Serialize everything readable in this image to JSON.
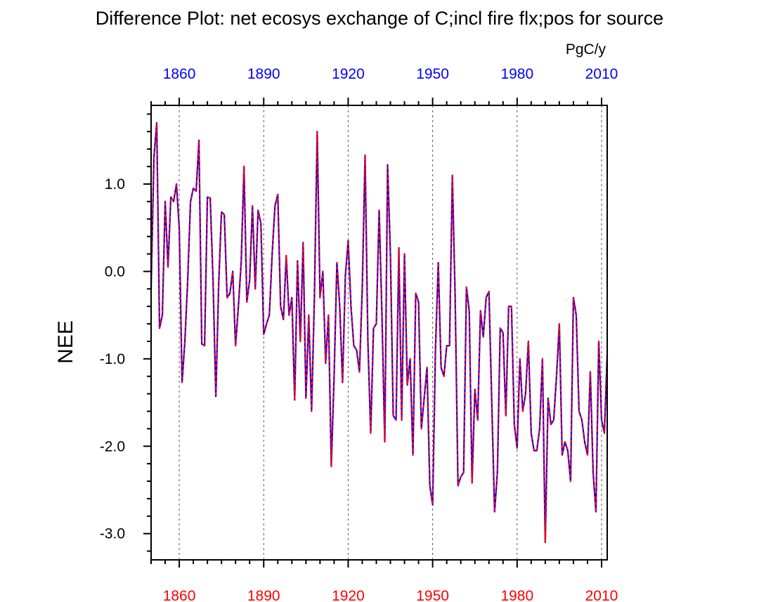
{
  "chart_data": {
    "type": "line",
    "title": "Difference Plot: net ecosys exchange of C;incl fire flx;pos for source",
    "units": "PgC/y",
    "ylabel": "NEE",
    "xlabel": "",
    "xlim": [
      1850,
      2012
    ],
    "ylim": [
      -3.3,
      1.9
    ],
    "x_ticks": [
      1860,
      1890,
      1920,
      1950,
      1980,
      2010
    ],
    "x_tick_labels": [
      "1860",
      "1890",
      "1920",
      "1950",
      "1980",
      "2010"
    ],
    "y_ticks": [
      1.0,
      0.0,
      -1.0,
      -2.0,
      -3.0
    ],
    "y_tick_labels": [
      "1.0",
      "0.0",
      "-1.0",
      "-2.0",
      "-3.0"
    ],
    "grid": "vertical dashed at major x ticks",
    "colors": {
      "series_blue": "#0000ff",
      "series_red": "#ff0000",
      "top_axis_labels": "#0000ff",
      "bottom_axis_labels": "#ff0000"
    },
    "x": [
      1850,
      1851,
      1852,
      1853,
      1854,
      1855,
      1856,
      1857,
      1858,
      1859,
      1860,
      1861,
      1862,
      1863,
      1864,
      1865,
      1866,
      1867,
      1868,
      1869,
      1870,
      1871,
      1872,
      1873,
      1874,
      1875,
      1876,
      1877,
      1878,
      1879,
      1880,
      1881,
      1882,
      1883,
      1884,
      1885,
      1886,
      1887,
      1888,
      1889,
      1890,
      1891,
      1892,
      1893,
      1894,
      1895,
      1896,
      1897,
      1898,
      1899,
      1900,
      1901,
      1902,
      1903,
      1904,
      1905,
      1906,
      1907,
      1908,
      1909,
      1910,
      1911,
      1912,
      1913,
      1914,
      1915,
      1916,
      1917,
      1918,
      1919,
      1920,
      1921,
      1922,
      1923,
      1924,
      1925,
      1926,
      1927,
      1928,
      1929,
      1930,
      1931,
      1932,
      1933,
      1934,
      1935,
      1936,
      1937,
      1938,
      1939,
      1940,
      1941,
      1942,
      1943,
      1944,
      1945,
      1946,
      1947,
      1948,
      1949,
      1950,
      1951,
      1952,
      1953,
      1954,
      1955,
      1956,
      1957,
      1958,
      1959,
      1960,
      1961,
      1962,
      1963,
      1964,
      1965,
      1966,
      1967,
      1968,
      1969,
      1970,
      1971,
      1972,
      1973,
      1974,
      1975,
      1976,
      1977,
      1978,
      1979,
      1980,
      1981,
      1982,
      1983,
      1984,
      1985,
      1986,
      1987,
      1988,
      1989,
      1990,
      1991,
      1992,
      1993,
      1994,
      1995,
      1996,
      1997,
      1998,
      1999,
      2000,
      2001,
      2002,
      2003,
      2004,
      2005,
      2006,
      2007,
      2008,
      2009,
      2010,
      2011,
      2012
    ],
    "series": [
      {
        "values": [
          -0.2,
          1.3,
          1.7,
          -0.65,
          -0.5,
          0.8,
          0.05,
          0.85,
          0.8,
          1.0,
          0.5,
          -1.27,
          -0.8,
          -0.1,
          0.8,
          0.95,
          0.92,
          1.5,
          -0.83,
          -0.85,
          0.85,
          0.84,
          -0.1,
          -1.43,
          -0.15,
          0.68,
          0.65,
          -0.3,
          -0.25,
          0.0,
          -0.85,
          -0.4,
          0.1,
          1.2,
          -0.35,
          -0.1,
          0.75,
          -0.2,
          0.7,
          0.55,
          -0.72,
          -0.6,
          -0.5,
          0.2,
          0.75,
          0.88,
          -0.4,
          -0.55,
          0.18,
          -0.5,
          -0.3,
          -1.47,
          0.12,
          -0.8,
          0.33,
          -1.45,
          -0.5,
          -1.6,
          -0.3,
          1.6,
          -0.3,
          0.0,
          -1.05,
          -0.5,
          -2.23,
          -1.2,
          0.1,
          -0.4,
          -1.27,
          -0.05,
          0.35,
          -0.4,
          -0.85,
          -0.9,
          -1.15,
          -0.2,
          1.33,
          -0.8,
          -1.85,
          -0.65,
          -0.6,
          0.7,
          -0.5,
          -1.95,
          1.22,
          0.2,
          -1.65,
          -1.7,
          0.27,
          -1.7,
          0.2,
          -1.3,
          -1.0,
          -2.1,
          -0.25,
          -0.35,
          -1.8,
          -1.45,
          -1.1,
          -2.45,
          -2.67,
          -0.9,
          0.1,
          -1.1,
          -1.2,
          -0.85,
          -0.85,
          1.1,
          -0.3,
          -2.45,
          -2.35,
          -2.3,
          -0.18,
          -0.45,
          -2.42,
          -1.35,
          -1.7,
          -0.45,
          -0.75,
          -0.3,
          -0.23,
          -1.5,
          -2.75,
          -2.3,
          -0.65,
          -0.7,
          -1.65,
          -0.4,
          -0.4,
          -1.75,
          -2.02,
          -1.0,
          -1.6,
          -1.4,
          -0.8,
          -1.85,
          -2.05,
          -2.05,
          -1.8,
          -1.0,
          -3.1,
          -1.45,
          -1.75,
          -1.7,
          -1.2,
          -0.6,
          -2.1,
          -1.95,
          -2.05,
          -2.4,
          -0.3,
          -0.5,
          -1.6,
          -1.7,
          -1.95,
          -2.1,
          -1.15,
          -2.3,
          -2.75,
          -0.8,
          -1.7,
          -1.85,
          -0.95
        ]
      }
    ]
  }
}
